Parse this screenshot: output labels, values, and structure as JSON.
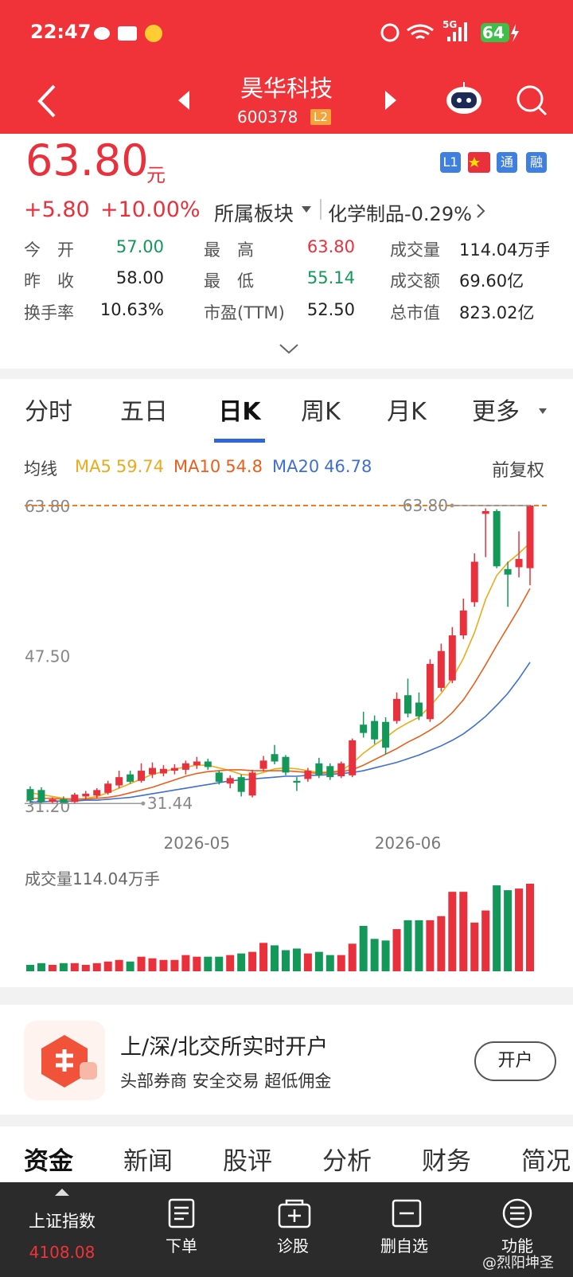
{
  "status_bar": {
    "time": "22:47",
    "network": "5G",
    "battery": "64"
  },
  "header": {
    "title": "昊华科技",
    "code": "600378",
    "level": "L2"
  },
  "quote": {
    "price": "63.80",
    "unit": "元",
    "change": "+5.80",
    "change_pct": "+10.00%",
    "sector_label": "所属板块",
    "sector": "化学制品-0.29%",
    "badges": [
      "L1",
      "通",
      "融"
    ]
  },
  "stats": [
    [
      {
        "label": "今　开",
        "value": "57.00"
      },
      {
        "label": "最　高",
        "value": "63.80"
      },
      {
        "label": "成交量",
        "value": "114.04万手"
      }
    ],
    [
      {
        "label": "昨　收",
        "value": "58.00"
      },
      {
        "label": "最　低",
        "value": "55.14"
      },
      {
        "label": "成交额",
        "value": "69.60亿"
      }
    ],
    [
      {
        "label": "换手率",
        "value": "10.63%"
      },
      {
        "label": "市盈(TTM)",
        "value": "52.50"
      },
      {
        "label": "总市值",
        "value": "823.02亿"
      }
    ]
  ],
  "tabs": [
    "分时",
    "五日",
    "日K",
    "周K",
    "月K",
    "更多"
  ],
  "ma_label": "均线",
  "adjust": "前复权",
  "chart_data": {
    "type": "candlestick",
    "x": [
      null,
      null,
      null,
      null,
      null,
      null,
      null,
      null,
      null,
      null,
      null,
      null,
      null,
      null,
      null,
      "2026-05",
      null,
      null,
      null,
      null,
      null,
      null,
      null,
      null,
      null,
      null,
      null,
      null,
      null,
      null,
      null,
      null,
      null,
      null,
      "2026-06",
      null,
      null,
      null,
      null,
      null,
      null,
      null,
      null,
      null,
      null,
      null
    ],
    "open": [
      33.0,
      32.9,
      31.6,
      31.9,
      31.6,
      32.2,
      32.3,
      32.6,
      33.4,
      34.6,
      33.9,
      34.6,
      34.7,
      35.0,
      35.1,
      35.6,
      36.0,
      34.8,
      33.6,
      34.3,
      32.3,
      35.2,
      36.8,
      36.5,
      33.9,
      34.1,
      35.8,
      35.5,
      34.4,
      34.5,
      40.0,
      40.4,
      40.3,
      40.4,
      43.2,
      42.4,
      40.6,
      44.0,
      44.8,
      49.7,
      53.3,
      62.9,
      63.2,
      56.9,
      57.1,
      57.0
    ],
    "close": [
      31.8,
      31.6,
      31.9,
      31.5,
      32.4,
      32.5,
      32.9,
      33.6,
      34.3,
      33.8,
      35.0,
      35.3,
      35.2,
      35.3,
      35.8,
      36.0,
      35.4,
      33.8,
      34.2,
      32.7,
      34.8,
      36.1,
      36.0,
      34.8,
      33.7,
      35.0,
      34.5,
      34.3,
      35.8,
      38.3,
      39.1,
      38.4,
      37.5,
      42.8,
      41.2,
      40.9,
      46.6,
      48.0,
      49.7,
      52.4,
      57.7,
      63.2,
      57.2,
      56.3,
      58.0,
      63.8
    ],
    "high": [
      33.3,
      33.2,
      32.1,
      32.2,
      32.6,
      32.8,
      33.1,
      33.9,
      35.0,
      35.0,
      35.8,
      35.9,
      35.6,
      35.7,
      36.1,
      36.5,
      36.3,
      35.0,
      34.5,
      34.6,
      35.1,
      36.6,
      37.8,
      36.7,
      34.3,
      35.3,
      36.4,
      35.8,
      36.0,
      38.5,
      41.4,
      41.0,
      40.8,
      43.5,
      45.0,
      43.5,
      47.1,
      48.8,
      50.6,
      53.7,
      58.6,
      63.5,
      63.4,
      57.7,
      61.0,
      63.8
    ],
    "low": [
      31.5,
      31.5,
      31.5,
      31.44,
      31.5,
      31.9,
      32.0,
      32.4,
      33.1,
      33.6,
      33.7,
      34.2,
      34.4,
      34.6,
      34.6,
      35.2,
      35.1,
      33.5,
      33.1,
      32.2,
      32.1,
      34.9,
      35.7,
      34.5,
      32.8,
      33.8,
      34.2,
      34.0,
      34.2,
      34.3,
      38.6,
      37.9,
      36.8,
      40.1,
      40.8,
      40.5,
      40.3,
      43.6,
      44.5,
      49.3,
      52.8,
      58.2,
      57.0,
      52.8,
      56.0,
      55.14
    ],
    "up_color": "#e8313c",
    "down_color": "#14985a",
    "ylim": [
      31.2,
      63.8
    ],
    "yticks": [
      {
        "value": 63.8,
        "label": "63.80"
      },
      {
        "value": 47.5,
        "label": "47.50"
      },
      {
        "value": 31.2,
        "label": "31.20"
      }
    ],
    "high_label": "63.80",
    "low_label": "31.44",
    "ma": [
      {
        "name": "MA5",
        "color": "#eeaa1c",
        "values": [
          32.6,
          32.4,
          32.2,
          32.0,
          31.9,
          32.0,
          32.2,
          32.6,
          33.1,
          33.6,
          34.1,
          34.6,
          34.9,
          35.2,
          35.4,
          35.6,
          35.6,
          35.3,
          35.0,
          34.6,
          34.5,
          34.8,
          35.2,
          35.3,
          35.2,
          35.0,
          34.8,
          34.9,
          35.0,
          35.8,
          36.9,
          37.8,
          38.6,
          39.5,
          40.2,
          40.8,
          42.0,
          43.4,
          45.0,
          47.2,
          50.0,
          53.6,
          56.2,
          57.6,
          58.6,
          59.74
        ]
      },
      {
        "name": "MA10",
        "color": "#e8601c",
        "values": [
          32.0,
          32.0,
          32.0,
          31.9,
          31.9,
          31.9,
          32.0,
          32.1,
          32.3,
          32.6,
          32.9,
          33.2,
          33.6,
          34.0,
          34.4,
          34.7,
          34.9,
          35.0,
          35.1,
          35.1,
          35.0,
          35.0,
          35.0,
          35.0,
          34.9,
          34.8,
          34.7,
          34.8,
          34.9,
          35.1,
          35.6,
          36.2,
          36.8,
          37.4,
          38.1,
          38.7,
          39.4,
          40.2,
          41.3,
          42.7,
          44.5,
          46.5,
          48.6,
          50.6,
          52.6,
          54.8
        ]
      },
      {
        "name": "MA20",
        "color": "#3f6fd0",
        "values": [
          31.6,
          31.6,
          31.7,
          31.7,
          31.7,
          31.8,
          31.8,
          31.9,
          32.0,
          32.1,
          32.3,
          32.5,
          32.7,
          32.9,
          33.1,
          33.3,
          33.5,
          33.7,
          33.9,
          34.0,
          34.1,
          34.2,
          34.3,
          34.4,
          34.4,
          34.5,
          34.5,
          34.6,
          34.7,
          34.8,
          35.0,
          35.3,
          35.6,
          35.9,
          36.3,
          36.7,
          37.2,
          37.7,
          38.3,
          39.0,
          39.9,
          40.9,
          42.1,
          43.4,
          45.0,
          46.78
        ]
      }
    ],
    "volume": {
      "label": "成交量114.04万手",
      "values": [
        8.4,
        10.6,
        8.4,
        10.6,
        10.6,
        8.4,
        10.6,
        12.7,
        14.8,
        12.7,
        19.0,
        16.9,
        14.8,
        14.8,
        21.1,
        19.0,
        19.0,
        19.0,
        21.1,
        23.2,
        25.3,
        37.0,
        33.8,
        27.5,
        29.6,
        23.2,
        25.3,
        21.1,
        21.1,
        35.9,
        59.1,
        42.2,
        40.1,
        54.9,
        66.5,
        66.5,
        66.5,
        71.8,
        103.5,
        103.5,
        63.4,
        79.2,
        111.9,
        105.6,
        107.7,
        114.04
      ],
      "ylim": [
        0,
        114.04
      ]
    }
  },
  "ad": {
    "title": "上/深/北交所实时开户",
    "subtitle": "头部券商  安全交易  超低佣金",
    "button": "开户"
  },
  "bottom_tabs": [
    "资金",
    "新闻",
    "股评",
    "分析",
    "财务",
    "简况"
  ],
  "nav": {
    "index_name": "上证指数",
    "index_value": "4108.08",
    "items": [
      "下单",
      "诊股",
      "删自选",
      "功能"
    ]
  },
  "watermark": "@烈阳坤圣"
}
